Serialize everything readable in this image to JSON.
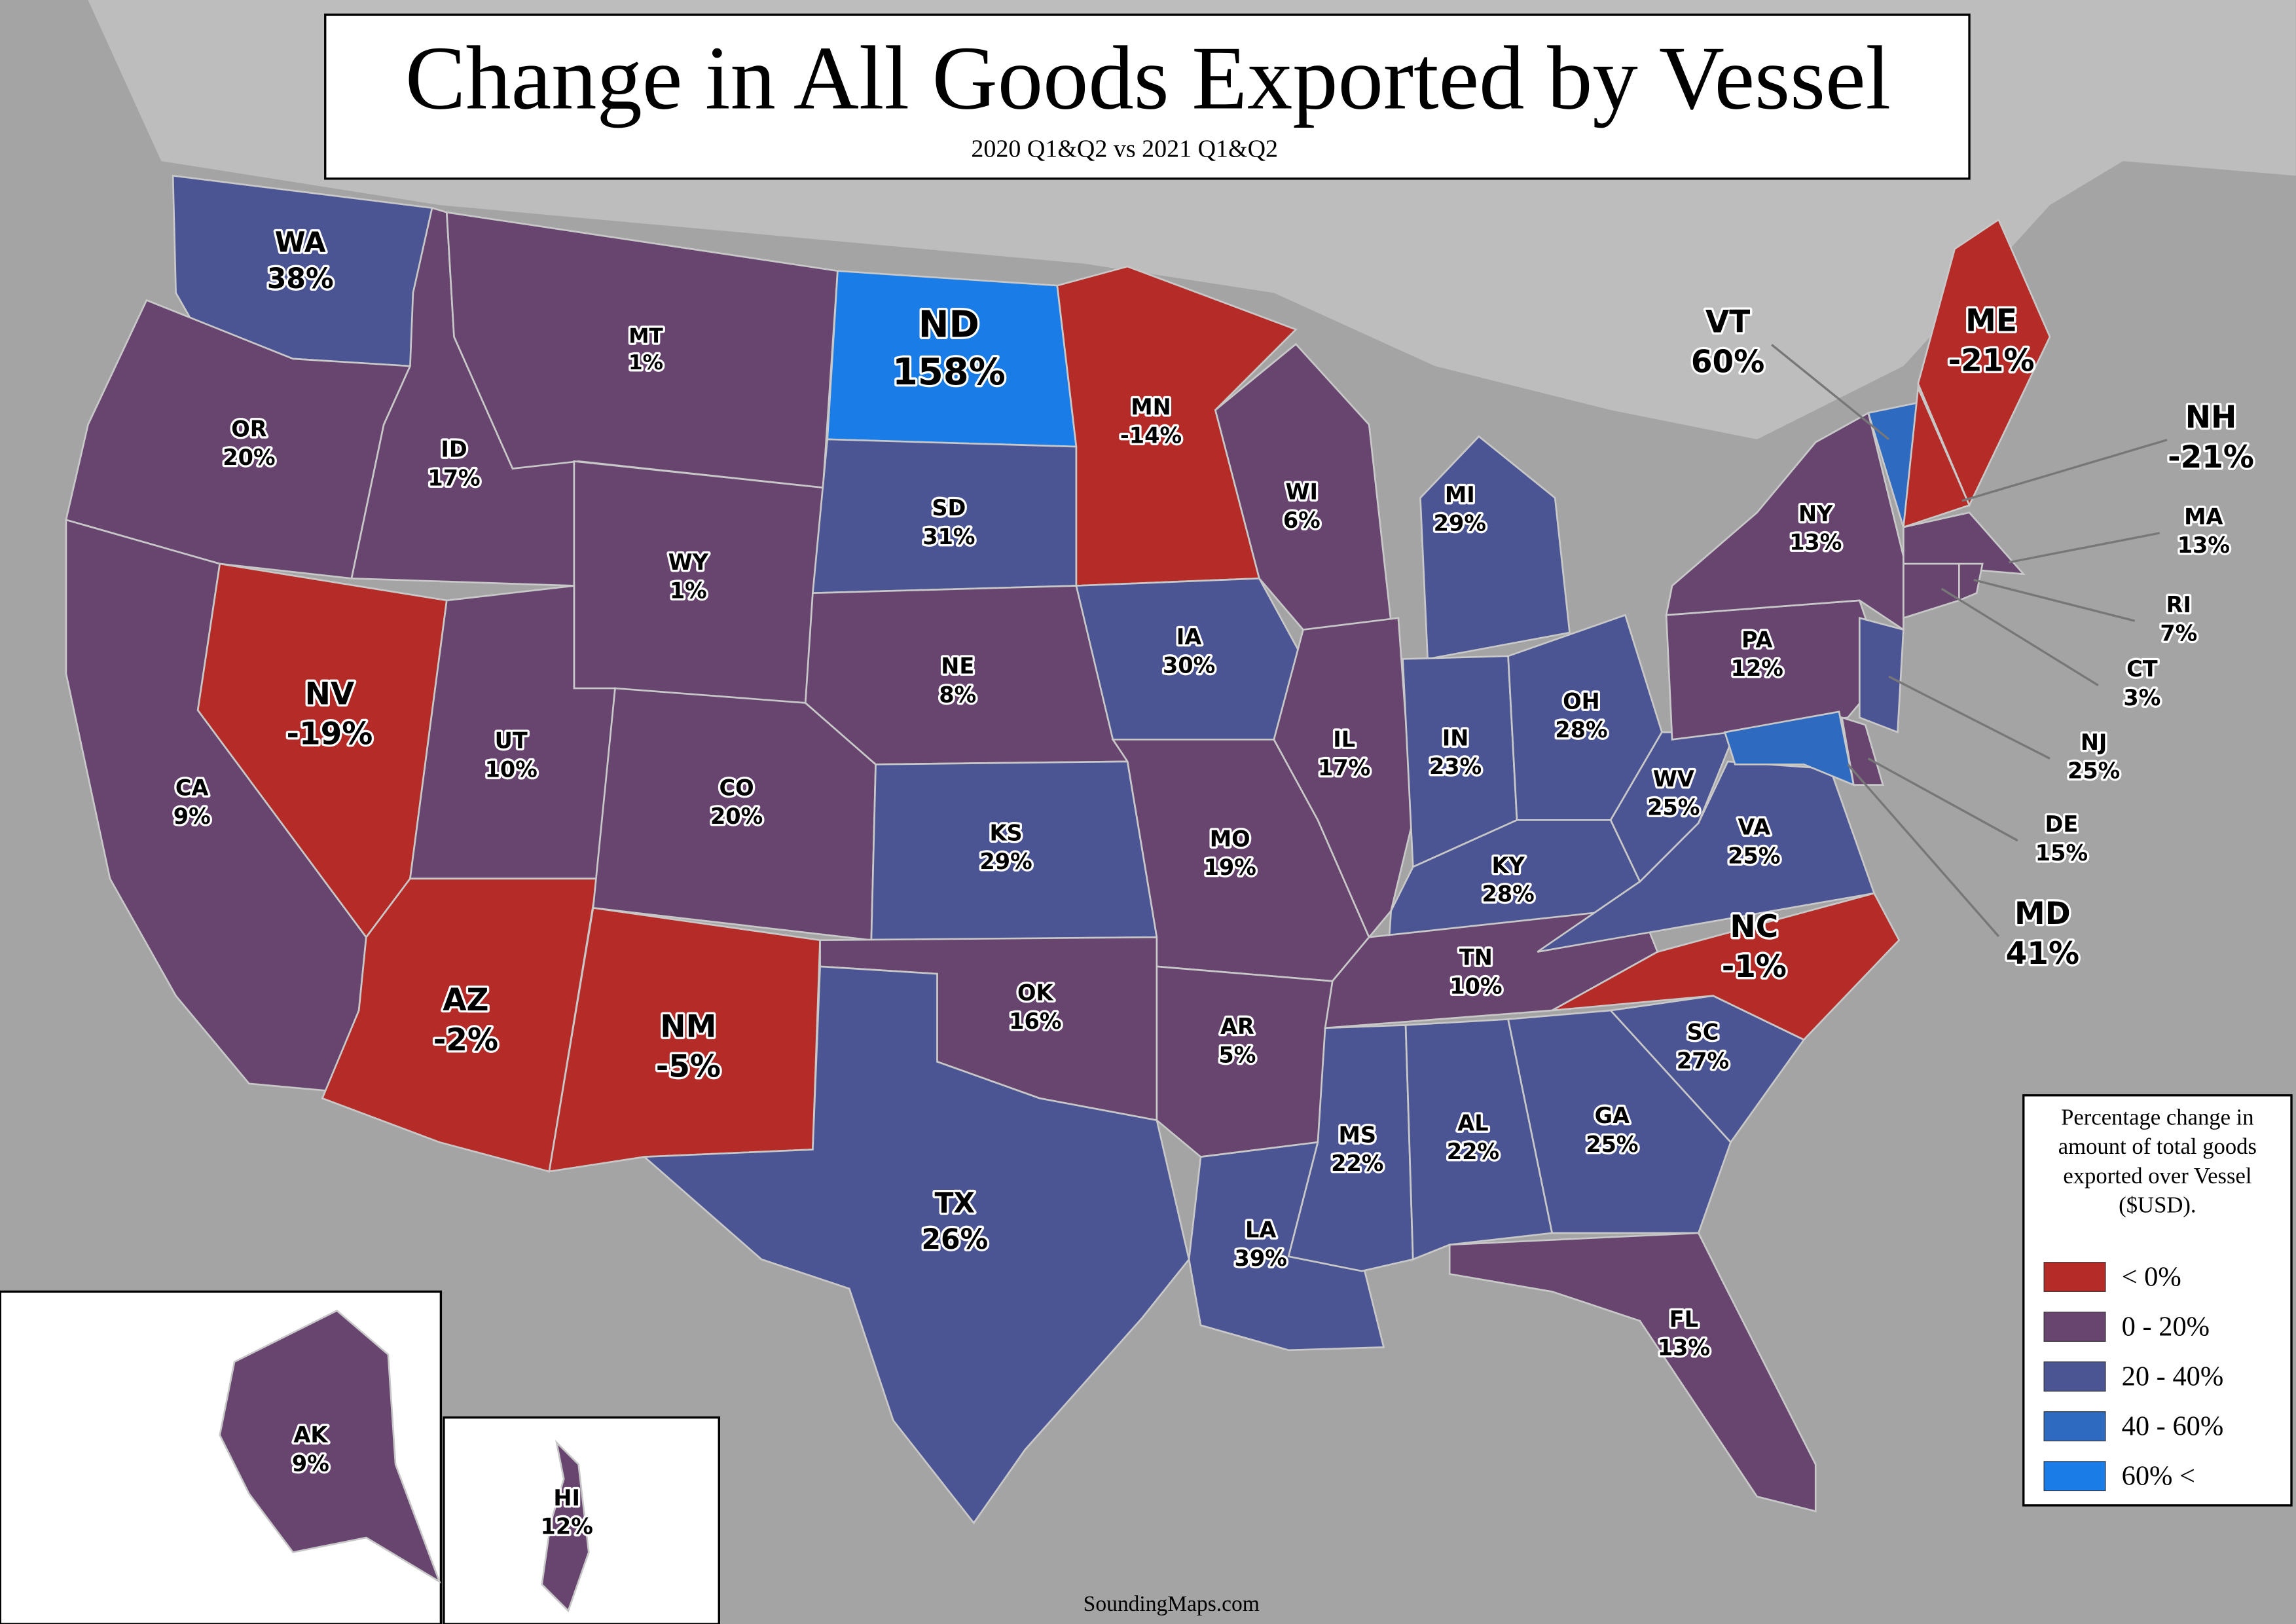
{
  "title": "Change in All Goods Exported by Vessel",
  "subtitle": "2020 Q1&Q2 vs 2021 Q1&Q2",
  "credit": "SoundingMaps.com",
  "legend": {
    "description": "Percentage change in amount of total goods exported over Vessel ($USD).",
    "items": [
      {
        "label": "< 0%",
        "color": "#b52b27"
      },
      {
        "label": "0 - 20%",
        "color": "#67456f"
      },
      {
        "label": "20 - 40%",
        "color": "#4c5594"
      },
      {
        "label": "40 - 60%",
        "color": "#2f6ac1"
      },
      {
        "label": "60% <",
        "color": "#1a7ce6"
      }
    ]
  },
  "states": [
    {
      "abbr": "WA",
      "change": "38%",
      "color": "#4c5594"
    },
    {
      "abbr": "OR",
      "change": "20%",
      "color": "#67456f"
    },
    {
      "abbr": "CA",
      "change": "9%",
      "color": "#67456f"
    },
    {
      "abbr": "NV",
      "change": "-19%",
      "color": "#b52b27"
    },
    {
      "abbr": "ID",
      "change": "17%",
      "color": "#67456f"
    },
    {
      "abbr": "MT",
      "change": "1%",
      "color": "#67456f"
    },
    {
      "abbr": "WY",
      "change": "1%",
      "color": "#67456f"
    },
    {
      "abbr": "UT",
      "change": "10%",
      "color": "#67456f"
    },
    {
      "abbr": "AZ",
      "change": "-2%",
      "color": "#b52b27"
    },
    {
      "abbr": "CO",
      "change": "20%",
      "color": "#67456f"
    },
    {
      "abbr": "NM",
      "change": "-5%",
      "color": "#b52b27"
    },
    {
      "abbr": "ND",
      "change": "158%",
      "color": "#1a7ce6"
    },
    {
      "abbr": "SD",
      "change": "31%",
      "color": "#4c5594"
    },
    {
      "abbr": "NE",
      "change": "8%",
      "color": "#67456f"
    },
    {
      "abbr": "KS",
      "change": "29%",
      "color": "#4c5594"
    },
    {
      "abbr": "OK",
      "change": "16%",
      "color": "#67456f"
    },
    {
      "abbr": "TX",
      "change": "26%",
      "color": "#4c5594"
    },
    {
      "abbr": "MN",
      "change": "-14%",
      "color": "#b52b27"
    },
    {
      "abbr": "IA",
      "change": "30%",
      "color": "#4c5594"
    },
    {
      "abbr": "MO",
      "change": "19%",
      "color": "#67456f"
    },
    {
      "abbr": "AR",
      "change": "5%",
      "color": "#67456f"
    },
    {
      "abbr": "LA",
      "change": "39%",
      "color": "#4c5594"
    },
    {
      "abbr": "WI",
      "change": "6%",
      "color": "#67456f"
    },
    {
      "abbr": "IL",
      "change": "17%",
      "color": "#67456f"
    },
    {
      "abbr": "MI",
      "change": "29%",
      "color": "#4c5594"
    },
    {
      "abbr": "IN",
      "change": "23%",
      "color": "#4c5594"
    },
    {
      "abbr": "OH",
      "change": "28%",
      "color": "#4c5594"
    },
    {
      "abbr": "KY",
      "change": "28%",
      "color": "#4c5594"
    },
    {
      "abbr": "TN",
      "change": "10%",
      "color": "#67456f"
    },
    {
      "abbr": "MS",
      "change": "22%",
      "color": "#4c5594"
    },
    {
      "abbr": "AL",
      "change": "22%",
      "color": "#4c5594"
    },
    {
      "abbr": "GA",
      "change": "25%",
      "color": "#4c5594"
    },
    {
      "abbr": "FL",
      "change": "13%",
      "color": "#67456f"
    },
    {
      "abbr": "SC",
      "change": "27%",
      "color": "#4c5594"
    },
    {
      "abbr": "NC",
      "change": "-1%",
      "color": "#b52b27"
    },
    {
      "abbr": "VA",
      "change": "25%",
      "color": "#4c5594"
    },
    {
      "abbr": "WV",
      "change": "25%",
      "color": "#4c5594"
    },
    {
      "abbr": "PA",
      "change": "12%",
      "color": "#67456f"
    },
    {
      "abbr": "NY",
      "change": "13%",
      "color": "#67456f"
    },
    {
      "abbr": "VT",
      "change": "60%",
      "color": "#2f6ac1"
    },
    {
      "abbr": "NH",
      "change": "-21%",
      "color": "#b52b27"
    },
    {
      "abbr": "ME",
      "change": "-21%",
      "color": "#b52b27"
    },
    {
      "abbr": "MA",
      "change": "13%",
      "color": "#67456f"
    },
    {
      "abbr": "CT",
      "change": "3%",
      "color": "#67456f"
    },
    {
      "abbr": "RI",
      "change": "7%",
      "color": "#67456f"
    },
    {
      "abbr": "NJ",
      "change": "25%",
      "color": "#4c5594"
    },
    {
      "abbr": "DE",
      "change": "15%",
      "color": "#67456f"
    },
    {
      "abbr": "MD",
      "change": "41%",
      "color": "#2f6ac1"
    },
    {
      "abbr": "AK",
      "change": "9%",
      "color": "#67456f"
    },
    {
      "abbr": "HI",
      "change": "12%",
      "color": "#67456f"
    }
  ]
}
